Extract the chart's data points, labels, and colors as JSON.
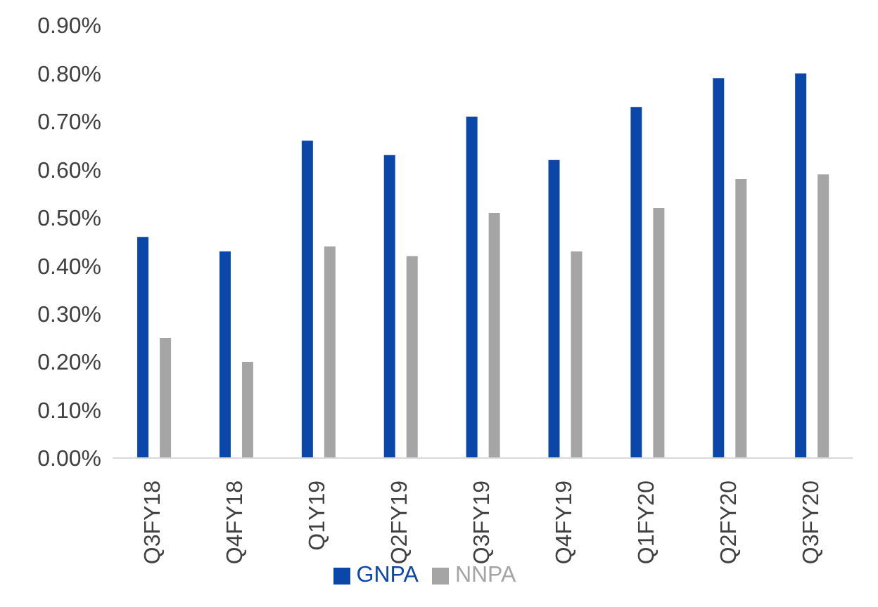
{
  "chart_data": {
    "type": "bar",
    "categories": [
      "Q3FY18",
      "Q4FY18",
      "Q1Y19",
      "Q2FY19",
      "Q3FY19",
      "Q4FY19",
      "Q1FY20",
      "Q2FY20",
      "Q3FY20"
    ],
    "series": [
      {
        "name": "GNPA",
        "color": "#0a47a9",
        "values": [
          0.46,
          0.43,
          0.66,
          0.63,
          0.71,
          0.62,
          0.73,
          0.79,
          0.8
        ]
      },
      {
        "name": "NNPA",
        "color": "#a5a5a5",
        "values": [
          0.25,
          0.2,
          0.44,
          0.42,
          0.51,
          0.43,
          0.52,
          0.58,
          0.59
        ]
      }
    ],
    "ylim": [
      0,
      0.9
    ],
    "yticks": [
      {
        "value": 0,
        "label": "0.00%"
      },
      {
        "value": 0.1,
        "label": "0.10%"
      },
      {
        "value": 0.2,
        "label": "0.20%"
      },
      {
        "value": 0.3,
        "label": "0.30%"
      },
      {
        "value": 0.4,
        "label": "0.40%"
      },
      {
        "value": 0.5,
        "label": "0.50%"
      },
      {
        "value": 0.6,
        "label": "0.60%"
      },
      {
        "value": 0.7,
        "label": "0.70%"
      },
      {
        "value": 0.8,
        "label": "0.80%"
      },
      {
        "value": 0.9,
        "label": "0.90%"
      }
    ],
    "grid": false,
    "legend": "bottom"
  }
}
